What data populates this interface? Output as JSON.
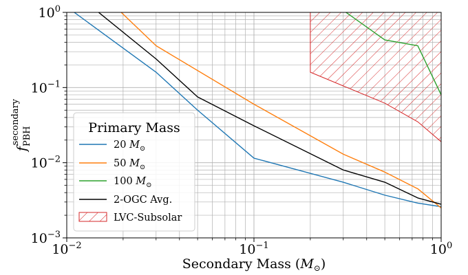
{
  "chart_data": {
    "type": "line",
    "xscale": "log",
    "yscale": "log",
    "xlim": [
      0.01,
      1
    ],
    "ylim": [
      0.001,
      1
    ],
    "grid": true,
    "xlabel": "Secondary Mass (M⊙)",
    "ylabel": "f_PBH^secondary",
    "x_ticks": [
      {
        "value": 0.01,
        "base": "10",
        "exp": "−2"
      },
      {
        "value": 0.1,
        "base": "10",
        "exp": "−1"
      },
      {
        "value": 1,
        "base": "10",
        "exp": "0"
      }
    ],
    "y_ticks": [
      {
        "value": 0.001,
        "base": "10",
        "exp": "−3"
      },
      {
        "value": 0.01,
        "base": "10",
        "exp": "−2"
      },
      {
        "value": 0.1,
        "base": "10",
        "exp": "−1"
      },
      {
        "value": 1,
        "base": "10",
        "exp": "0"
      }
    ],
    "legend": {
      "title": "Primary Mass",
      "placement": "lower-left"
    },
    "series": [
      {
        "name": "20 M⊙",
        "color": "#1f77b4",
        "points": [
          [
            0.0095,
            1.3
          ],
          [
            0.03,
            0.16
          ],
          [
            0.05,
            0.05
          ],
          [
            0.1,
            0.0115
          ],
          [
            0.3,
            0.0055
          ],
          [
            0.5,
            0.0037
          ],
          [
            0.75,
            0.0029
          ],
          [
            1.0,
            0.0026
          ]
        ]
      },
      {
        "name": "50 M⊙",
        "color": "#ff7f0e",
        "points": [
          [
            0.0175,
            1.3
          ],
          [
            0.03,
            0.36
          ],
          [
            0.1,
            0.06
          ],
          [
            0.3,
            0.013
          ],
          [
            0.5,
            0.0075
          ],
          [
            0.75,
            0.0045
          ],
          [
            1.0,
            0.0025
          ]
        ]
      },
      {
        "name": "100 M⊙",
        "color": "#2ca02c",
        "points": [
          [
            0.28,
            1.2
          ],
          [
            0.5,
            0.43
          ],
          [
            0.75,
            0.36
          ],
          [
            1.0,
            0.08
          ]
        ]
      },
      {
        "name": "2-OGC Avg.",
        "color": "#000000",
        "points": [
          [
            0.013,
            1.3
          ],
          [
            0.03,
            0.24
          ],
          [
            0.05,
            0.075
          ],
          [
            0.1,
            0.031
          ],
          [
            0.3,
            0.008
          ],
          [
            0.5,
            0.0055
          ],
          [
            0.75,
            0.0034
          ],
          [
            1.0,
            0.0028
          ]
        ]
      }
    ],
    "regions": [
      {
        "name": "LVC-Subsolar",
        "color": "#d62728",
        "hatch": "diagonal",
        "polygon": [
          [
            0.2,
            1.0
          ],
          [
            0.2,
            0.16
          ],
          [
            0.3,
            0.105
          ],
          [
            0.5,
            0.062
          ],
          [
            0.75,
            0.035
          ],
          [
            1.0,
            0.019
          ],
          [
            1.0,
            1.0
          ]
        ]
      }
    ]
  }
}
